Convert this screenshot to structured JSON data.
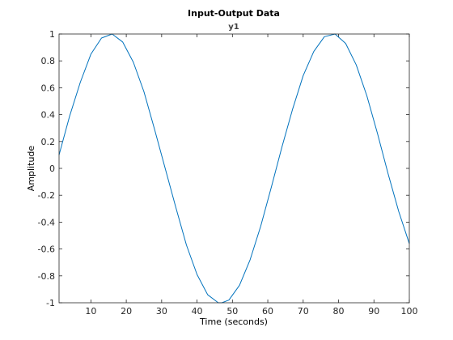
{
  "chart_data": {
    "type": "line",
    "title": "Input-Output Data",
    "subtitle": "y1",
    "xlabel": "Time (seconds)",
    "ylabel": "Amplitude",
    "xlim": [
      1,
      100
    ],
    "ylim": [
      -1,
      1
    ],
    "xticks": [
      10,
      20,
      30,
      40,
      50,
      60,
      70,
      80,
      90,
      100
    ],
    "xtick_labels": [
      "10",
      "20",
      "30",
      "40",
      "50",
      "60",
      "70",
      "80",
      "90",
      "100"
    ],
    "yticks": [
      1,
      0.8,
      0.6,
      0.4,
      0.2,
      0,
      -0.2,
      -0.4,
      -0.6,
      -0.8,
      -1
    ],
    "ytick_labels": [
      "1",
      "0.8",
      "0.6",
      "0.4",
      "0.2",
      "0",
      "-0.2",
      "-0.4",
      "-0.6",
      "-0.8",
      "-1"
    ],
    "grid": false,
    "series": [
      {
        "color": "#0072BD",
        "x": [
          1,
          4,
          7,
          10,
          13,
          16,
          19,
          22,
          25,
          28,
          31,
          34,
          37,
          40,
          43,
          46,
          47,
          49,
          52,
          55,
          58,
          61,
          64,
          67,
          70,
          73,
          76,
          79,
          82,
          85,
          88,
          91,
          94,
          97,
          100
        ],
        "y": [
          0.1,
          0.39,
          0.64,
          0.85,
          0.97,
          1.0,
          0.94,
          0.79,
          0.57,
          0.29,
          0.0,
          -0.29,
          -0.57,
          -0.79,
          -0.94,
          -1.0,
          -1.0,
          -0.98,
          -0.87,
          -0.68,
          -0.43,
          -0.14,
          0.16,
          0.44,
          0.69,
          0.87,
          0.98,
          1.0,
          0.93,
          0.77,
          0.54,
          0.26,
          -0.04,
          -0.32,
          -0.56
        ]
      }
    ]
  }
}
